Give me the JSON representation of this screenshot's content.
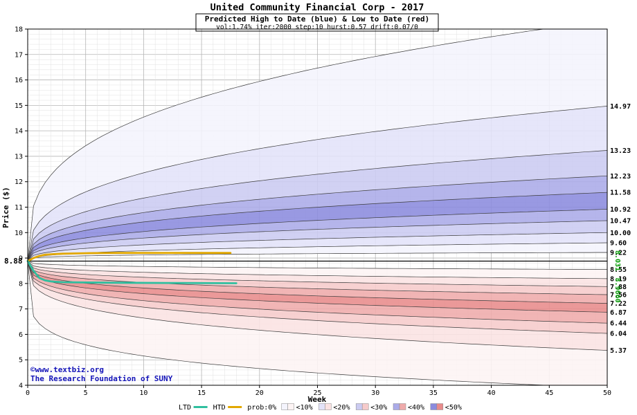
{
  "chart_data": {
    "type": "area",
    "title": "United Community Financial Corp - 2017",
    "subtitle": "Predicted High to Date (blue) &  Low to Date (red)",
    "params": "vol:1.74% iter:2000 step:10 hurst:0.57 drift:0.07/0",
    "xlabel": "Week",
    "ylabel": "Price ($)",
    "xlim": [
      0,
      50
    ],
    "ylim": [
      4,
      18
    ],
    "x_ticks": [
      0,
      5,
      10,
      15,
      20,
      25,
      30,
      35,
      40,
      45,
      50
    ],
    "y_ticks": [
      4,
      5,
      6,
      7,
      8,
      9,
      10,
      11,
      12,
      13,
      14,
      15,
      16,
      17,
      18
    ],
    "x_minor_step": 1,
    "y_minor_step": 0.2,
    "grid": true,
    "legend_position": "bottom",
    "start_price": 8.88,
    "start_label": "8.88",
    "upper": {
      "description": "high-to-date probability band boundaries, start 8.88 at week 0, value at week 50",
      "endpoints": [
        9.22,
        9.6,
        10.0,
        10.47,
        10.92,
        11.58,
        12.23,
        13.23,
        14.97,
        18.35
      ],
      "exponents": [
        0.22,
        0.35,
        0.35,
        0.35,
        0.35,
        0.35,
        0.35,
        0.35,
        0.35,
        0.32
      ],
      "labels": [
        "9.22",
        "9.60",
        "10.00",
        "10.47",
        "10.92",
        "11.58",
        "12.23",
        "13.23",
        "14.97"
      ]
    },
    "lower": {
      "description": "low-to-date probability band boundaries, start 8.88 at week 0, value at week 50",
      "endpoints": [
        8.55,
        8.19,
        7.88,
        7.56,
        7.22,
        6.87,
        6.44,
        6.04,
        5.37,
        3.9
      ],
      "exponents": [
        0.28,
        0.28,
        0.28,
        0.28,
        0.28,
        0.28,
        0.28,
        0.28,
        0.28,
        0.18
      ],
      "labels": [
        "8.55",
        "8.19",
        "7.88",
        "7.56",
        "7.22",
        "6.87",
        "6.44",
        "6.04",
        "5.37"
      ]
    },
    "band_classes": [
      1,
      2,
      3,
      4,
      5,
      4,
      3,
      2,
      1
    ],
    "ltd": {
      "label": "LTD",
      "color": "#2fbf9f",
      "points": [
        [
          0,
          8.88
        ],
        [
          0.5,
          8.5
        ],
        [
          1,
          8.22
        ],
        [
          1.5,
          8.12
        ],
        [
          2,
          8.08
        ],
        [
          3,
          8.05
        ],
        [
          5,
          8.04
        ],
        [
          8,
          8.03
        ],
        [
          12,
          8.02
        ],
        [
          18,
          8.01
        ]
      ]
    },
    "htd": {
      "label": "HTD",
      "color": "#e2a800",
      "points": [
        [
          0,
          8.88
        ],
        [
          0.5,
          9.0
        ],
        [
          1,
          9.08
        ],
        [
          1.5,
          9.13
        ],
        [
          2,
          9.15
        ],
        [
          3,
          9.17
        ],
        [
          5,
          9.19
        ],
        [
          8,
          9.2
        ],
        [
          12,
          9.2
        ],
        [
          17.5,
          9.2
        ]
      ]
    },
    "green_labels": [
      "8.031",
      "8.9660"
    ],
    "annotations": {
      "copyright": "©www.textbiz.org",
      "foundation": "The Research Foundation of SUNY"
    },
    "legend": {
      "prob_label": "prob:0%",
      "classes": [
        "<10%",
        "<20%",
        "<30%",
        "<40%",
        "<50%"
      ]
    },
    "colors": {
      "blue_shades": [
        "#f4f4fd",
        "#e3e3f9",
        "#cbcbf1",
        "#ababe8",
        "#8b8bde"
      ],
      "red_shades": [
        "#fdf4f4",
        "#fbe3e3",
        "#f6cbcb",
        "#efabab",
        "#e88b8b"
      ],
      "curve_stroke": "#3a3a3a",
      "grid_minor": "#e0e0e0",
      "grid_major": "#b5b5b5",
      "start_line": "#000000",
      "green_label": "#009900",
      "copyright_blue": "#1414b8"
    }
  }
}
